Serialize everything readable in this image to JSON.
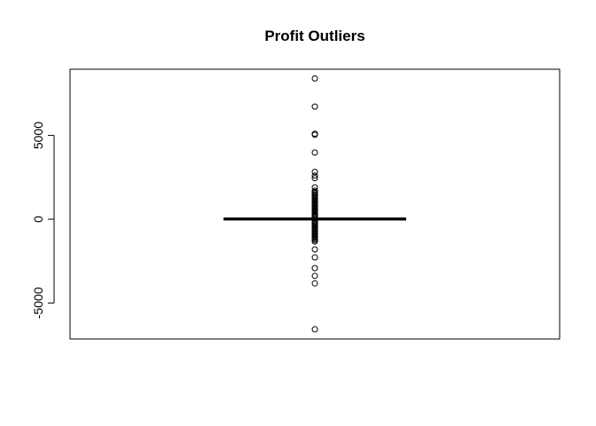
{
  "chart_data": {
    "type": "boxplot",
    "title": "Profit Outliers",
    "xlabel": "",
    "ylabel": "",
    "ylim": [
      -7150,
      8950
    ],
    "yticks": [
      -5000,
      0,
      5000
    ],
    "ytick_labels": [
      "-5000",
      "0",
      "5000"
    ],
    "grid": false,
    "legend": "none",
    "box": {
      "min": -40,
      "q1": 2,
      "median": 9,
      "q3": 30,
      "max": 70
    },
    "outliers": [
      8400,
      6720,
      5100,
      5040,
      3980,
      2820,
      2600,
      2450,
      1900,
      1700,
      1620,
      1540,
      1460,
      1390,
      1320,
      1250,
      1180,
      1110,
      1040,
      970,
      900,
      830,
      760,
      690,
      620,
      550,
      480,
      410,
      340,
      270,
      200,
      150,
      110,
      -130,
      -180,
      -240,
      -300,
      -360,
      -420,
      -480,
      -540,
      -600,
      -660,
      -720,
      -780,
      -840,
      -900,
      -960,
      -1030,
      -1100,
      -1170,
      -1240,
      -1330,
      -1800,
      -2280,
      -2920,
      -3380,
      -3830,
      -6570
    ],
    "colors": {
      "stroke": "#000000",
      "background": "#ffffff"
    }
  }
}
